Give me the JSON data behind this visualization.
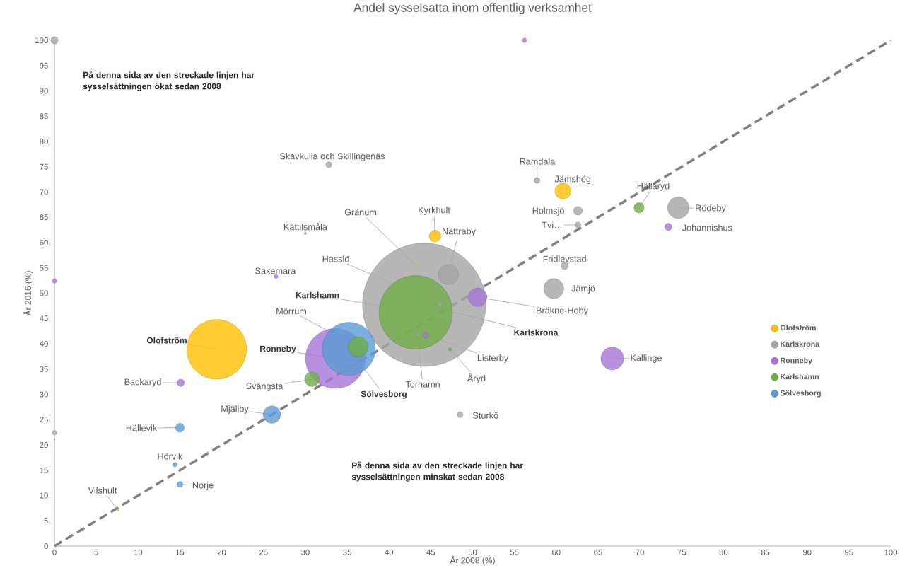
{
  "chart_data": {
    "type": "bubble",
    "title": "Andel sysselsatta inom offentlig verksamhet",
    "xlabel": "År 2008 (%)",
    "ylabel": "År 2016 (%)",
    "xlim": [
      0,
      100
    ],
    "ylim": [
      0,
      100
    ],
    "xticks": [
      0,
      5,
      10,
      15,
      20,
      25,
      30,
      35,
      40,
      45,
      50,
      55,
      60,
      65,
      70,
      75,
      80,
      85,
      90,
      95,
      100
    ],
    "yticks": [
      0,
      5,
      10,
      15,
      20,
      25,
      30,
      35,
      40,
      45,
      50,
      55,
      60,
      65,
      70,
      75,
      80,
      85,
      90,
      95,
      100
    ],
    "grid": false,
    "legend": "right",
    "series": [
      {
        "name": "Olofström",
        "color": "#ffc000",
        "x": [
          19.4,
          60.8,
          45.5,
          7.6,
          43.3
        ],
        "values": [
          38.9,
          70.2,
          61.3,
          7.1,
          55.4
        ],
        "sizes": [
          0.24,
          0.019,
          0.0105,
          0.0005,
          0.0005
        ]
      },
      {
        "name": "Karlskrona",
        "color": "#a5a5a5",
        "x": [
          44.2,
          47.1,
          46.1,
          43.4,
          57.7,
          62.6,
          62.6,
          61.0,
          59.7,
          74.6,
          48.5,
          32.8,
          30.0,
          0,
          0,
          0
        ],
        "values": [
          47.7,
          53.7,
          47.8,
          41.8,
          72.3,
          66.3,
          63.5,
          55.4,
          50.9,
          66.9,
          26.0,
          75.4,
          61.8,
          100,
          22.4,
          21.1
        ],
        "sizes": [
          1,
          0.029,
          0.0021,
          0.0012,
          0.0032,
          0.0063,
          0.0032,
          0.0046,
          0.029,
          0.033,
          0.0032,
          0.0032,
          0.0008,
          0.0046,
          0.0021,
          0.0005
        ]
      },
      {
        "name": "Ronneby",
        "color": "#a874d8",
        "x": [
          33.6,
          50.6,
          44.4,
          73.4,
          66.7,
          26.5,
          15.1,
          56.2,
          0
        ],
        "values": [
          37.1,
          49.2,
          41.7,
          63.1,
          37.1,
          53.3,
          32.3,
          100,
          52.4
        ],
        "sizes": [
          0.24,
          0.025,
          0.0032,
          0.0046,
          0.037,
          0.0016,
          0.0046,
          0.0021,
          0.0021
        ]
      },
      {
        "name": "Karlshamn",
        "color": "#70ad47",
        "x": [
          43.2,
          47.3,
          30.8,
          69.9,
          36.3
        ],
        "values": [
          46.2,
          38.9,
          33.0,
          66.9,
          39.4
        ],
        "sizes": [
          0.36,
          0.0012,
          0.016,
          0.0083,
          0.029
        ]
      },
      {
        "name": "Sölvesborg",
        "color": "#5b9bd5",
        "x": [
          35.2,
          26.0,
          15.0,
          14.4,
          15.0
        ],
        "values": [
          39.0,
          26.0,
          23.4,
          16.1,
          12.2
        ],
        "sizes": [
          0.19,
          0.022,
          0.0063,
          0.0021,
          0.0032
        ]
      },
      {
        "type": "line",
        "color": "#7f7f7f",
        "line_style": "dashed",
        "x": [
          0,
          100
        ],
        "values": [
          0,
          100
        ]
      }
    ],
    "annotations": [
      "På denna sida av den streckade linjen har sysselsättningen ökat sedan 2008",
      "På denna sida av den streckade linjen har sysselsättningen minskat sedan 2008",
      {
        "text": "Olofström",
        "x": 19.4,
        "y": 38.9
      },
      {
        "text": "Jämshög",
        "x": 60.8,
        "y": 70.2
      },
      {
        "text": "Kyrkhult",
        "x": 45.5,
        "y": 61.3
      },
      {
        "text": "Vilshult",
        "x": 7.6,
        "y": 7.1
      },
      {
        "text": "Gränum",
        "x": 43.3,
        "y": 55.4
      },
      {
        "text": "Karlskrona",
        "x": 44.2,
        "y": 47.7
      },
      {
        "text": "Nättraby",
        "x": 47.1,
        "y": 53.7
      },
      {
        "text": "Hasslö",
        "x": 46.1,
        "y": 47.8
      },
      {
        "text": "Torhamn",
        "x": 43.4,
        "y": 41.8
      },
      {
        "text": "Ramdala",
        "x": 57.7,
        "y": 72.3
      },
      {
        "text": "Holmsjö",
        "x": 62.6,
        "y": 66.3
      },
      {
        "text": "Tvi…",
        "x": 62.6,
        "y": 63.5
      },
      {
        "text": "Fridlevstad",
        "x": 61.0,
        "y": 55.4
      },
      {
        "text": "Jämjö",
        "x": 59.7,
        "y": 50.9
      },
      {
        "text": "Rödeby",
        "x": 74.6,
        "y": 66.9
      },
      {
        "text": "Sturkö",
        "x": 48.5,
        "y": 26.0
      },
      {
        "text": "Skavkulla och Skillingenäs",
        "x": 32.8,
        "y": 75.4
      },
      {
        "text": "Kättilsmåla",
        "x": 30.0,
        "y": 61.8
      },
      {
        "text": "Ronneby",
        "x": 33.6,
        "y": 37.1
      },
      {
        "text": "Bräkne-Hoby",
        "x": 50.6,
        "y": 49.2
      },
      {
        "text": "Listerby",
        "x": 44.4,
        "y": 41.7
      },
      {
        "text": "Johannishus",
        "x": 73.4,
        "y": 63.1
      },
      {
        "text": "Kallinge",
        "x": 66.7,
        "y": 37.1
      },
      {
        "text": "Saxemara",
        "x": 26.5,
        "y": 53.3
      },
      {
        "text": "Backaryd",
        "x": 15.1,
        "y": 32.3
      },
      {
        "text": "Karlshamn",
        "x": 43.2,
        "y": 46.2
      },
      {
        "text": "Åryd",
        "x": 47.3,
        "y": 38.9
      },
      {
        "text": "Svängsta",
        "x": 30.8,
        "y": 33.0
      },
      {
        "text": "Hällaryd",
        "x": 69.9,
        "y": 66.9
      },
      {
        "text": "Mörrum",
        "x": 36.3,
        "y": 39.4
      },
      {
        "text": "Sölvesborg",
        "x": 35.2,
        "y": 39.0
      },
      {
        "text": "Mjällby",
        "x": 26.0,
        "y": 26.0
      },
      {
        "text": "Hällevik",
        "x": 15.0,
        "y": 23.4
      },
      {
        "text": "Hörvik",
        "x": 14.4,
        "y": 16.1
      },
      {
        "text": "Norje",
        "x": 15.0,
        "y": 12.2
      }
    ]
  }
}
